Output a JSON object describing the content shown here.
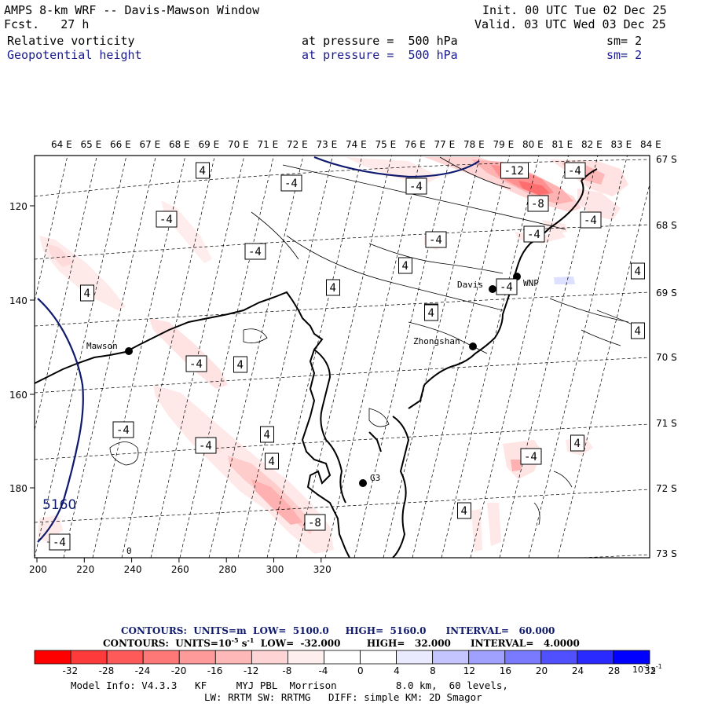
{
  "header": {
    "title": "AMPS 8-km WRF -- Davis-Mawson Window",
    "fcst": "Fcst.   27 h",
    "init": "Init. 00 UTC Tue 02 Dec 25",
    "valid": "Valid. 03 UTC Wed 03 Dec 25",
    "field1_name": "Relative vorticity",
    "field1_level": "at pressure =  500 hPa",
    "field1_sm": "sm= 2",
    "field2_name": "Geopotential height",
    "field2_level": "at pressure =  500 hPa",
    "field2_sm": "sm= 2"
  },
  "map": {
    "lon_labels": [
      "64 E",
      "65 E",
      "66 E",
      "67 E",
      "68 E",
      "69 E",
      "70 E",
      "71 E",
      "72 E",
      "73 E",
      "74 E",
      "75 E",
      "76 E",
      "77 E",
      "78 E",
      "79 E",
      "80 E",
      "81 E",
      "82 E",
      "83 E",
      "84 E"
    ],
    "lat_labels": [
      "67 S",
      "68 S",
      "69 S",
      "70 S",
      "71 S",
      "72 S",
      "73 S"
    ],
    "x_ticks": [
      "200",
      "220",
      "240",
      "260",
      "280",
      "300",
      "320"
    ],
    "y_ticks": [
      "120",
      "140",
      "160",
      "180"
    ],
    "stations": [
      {
        "name": "Mawson",
        "label": "Mawson"
      },
      {
        "name": "Davis",
        "label": "Davis"
      },
      {
        "name": "WNP",
        "label": "WNP"
      },
      {
        "name": "Zhongshan",
        "label": "Zhongshan"
      },
      {
        "name": "G3",
        "label": "G3"
      }
    ],
    "height_label": "5160",
    "contour_labels": [
      "4",
      "-4",
      "-4",
      "-4",
      "4",
      "-4",
      "4",
      "-4",
      "4",
      "4",
      "4",
      "-4",
      "4",
      "-4",
      "4",
      "4",
      "4",
      "4",
      "-4",
      "-4",
      "-4",
      "-4",
      "4",
      "-8",
      "-12",
      "-8",
      "-4",
      "-4",
      "4",
      "-4",
      "0"
    ]
  },
  "legend": {
    "contours1_label": "CONTOURS:",
    "contours1_units": "UNITS=m",
    "contours1_low": "LOW=  5100.0",
    "contours1_high": "HIGH=  5160.0",
    "contours1_interval": "INTERVAL=   60.000",
    "contours2_label": "CONTOURS:",
    "contours2_units": "UNITS=10",
    "contours2_units_exp": "-5",
    "contours2_units_s": "s",
    "contours2_units_s_exp": "-1",
    "contours2_low": "LOW=  -32.000",
    "contours2_high": "HIGH=   32.000",
    "contours2_interval": "INTERVAL=   4.0000",
    "colorbar_colors": [
      "#ff0000",
      "#ff3a3a",
      "#ff5a5a",
      "#ff7878",
      "#ff9a9a",
      "#ffb8b8",
      "#ffd4d4",
      "#ffeeee",
      "#ffffff",
      "#ffffff",
      "#eaeaff",
      "#c4c4ff",
      "#a0a0ff",
      "#7a7aff",
      "#5050ff",
      "#2a2aff",
      "#0000ff"
    ],
    "colorbar_ticks": [
      "-32",
      "-28",
      "-24",
      "-20",
      "-16",
      "-12",
      "-8",
      "-4",
      "0",
      "4",
      "8",
      "12",
      "16",
      "20",
      "24",
      "28",
      "32"
    ],
    "colorbar_unit": "10",
    "colorbar_unit_exp": "-5",
    "colorbar_unit_s": "s",
    "colorbar_unit_s_exp": "-1"
  },
  "model_info": {
    "line1": "Model Info: V4.3.3   KF     MYJ PBL  Morrison          8.0 km,  60 levels,",
    "line2": "LW: RRTM SW: RRTMG   DIFF: simple KM: 2D Smagor"
  }
}
